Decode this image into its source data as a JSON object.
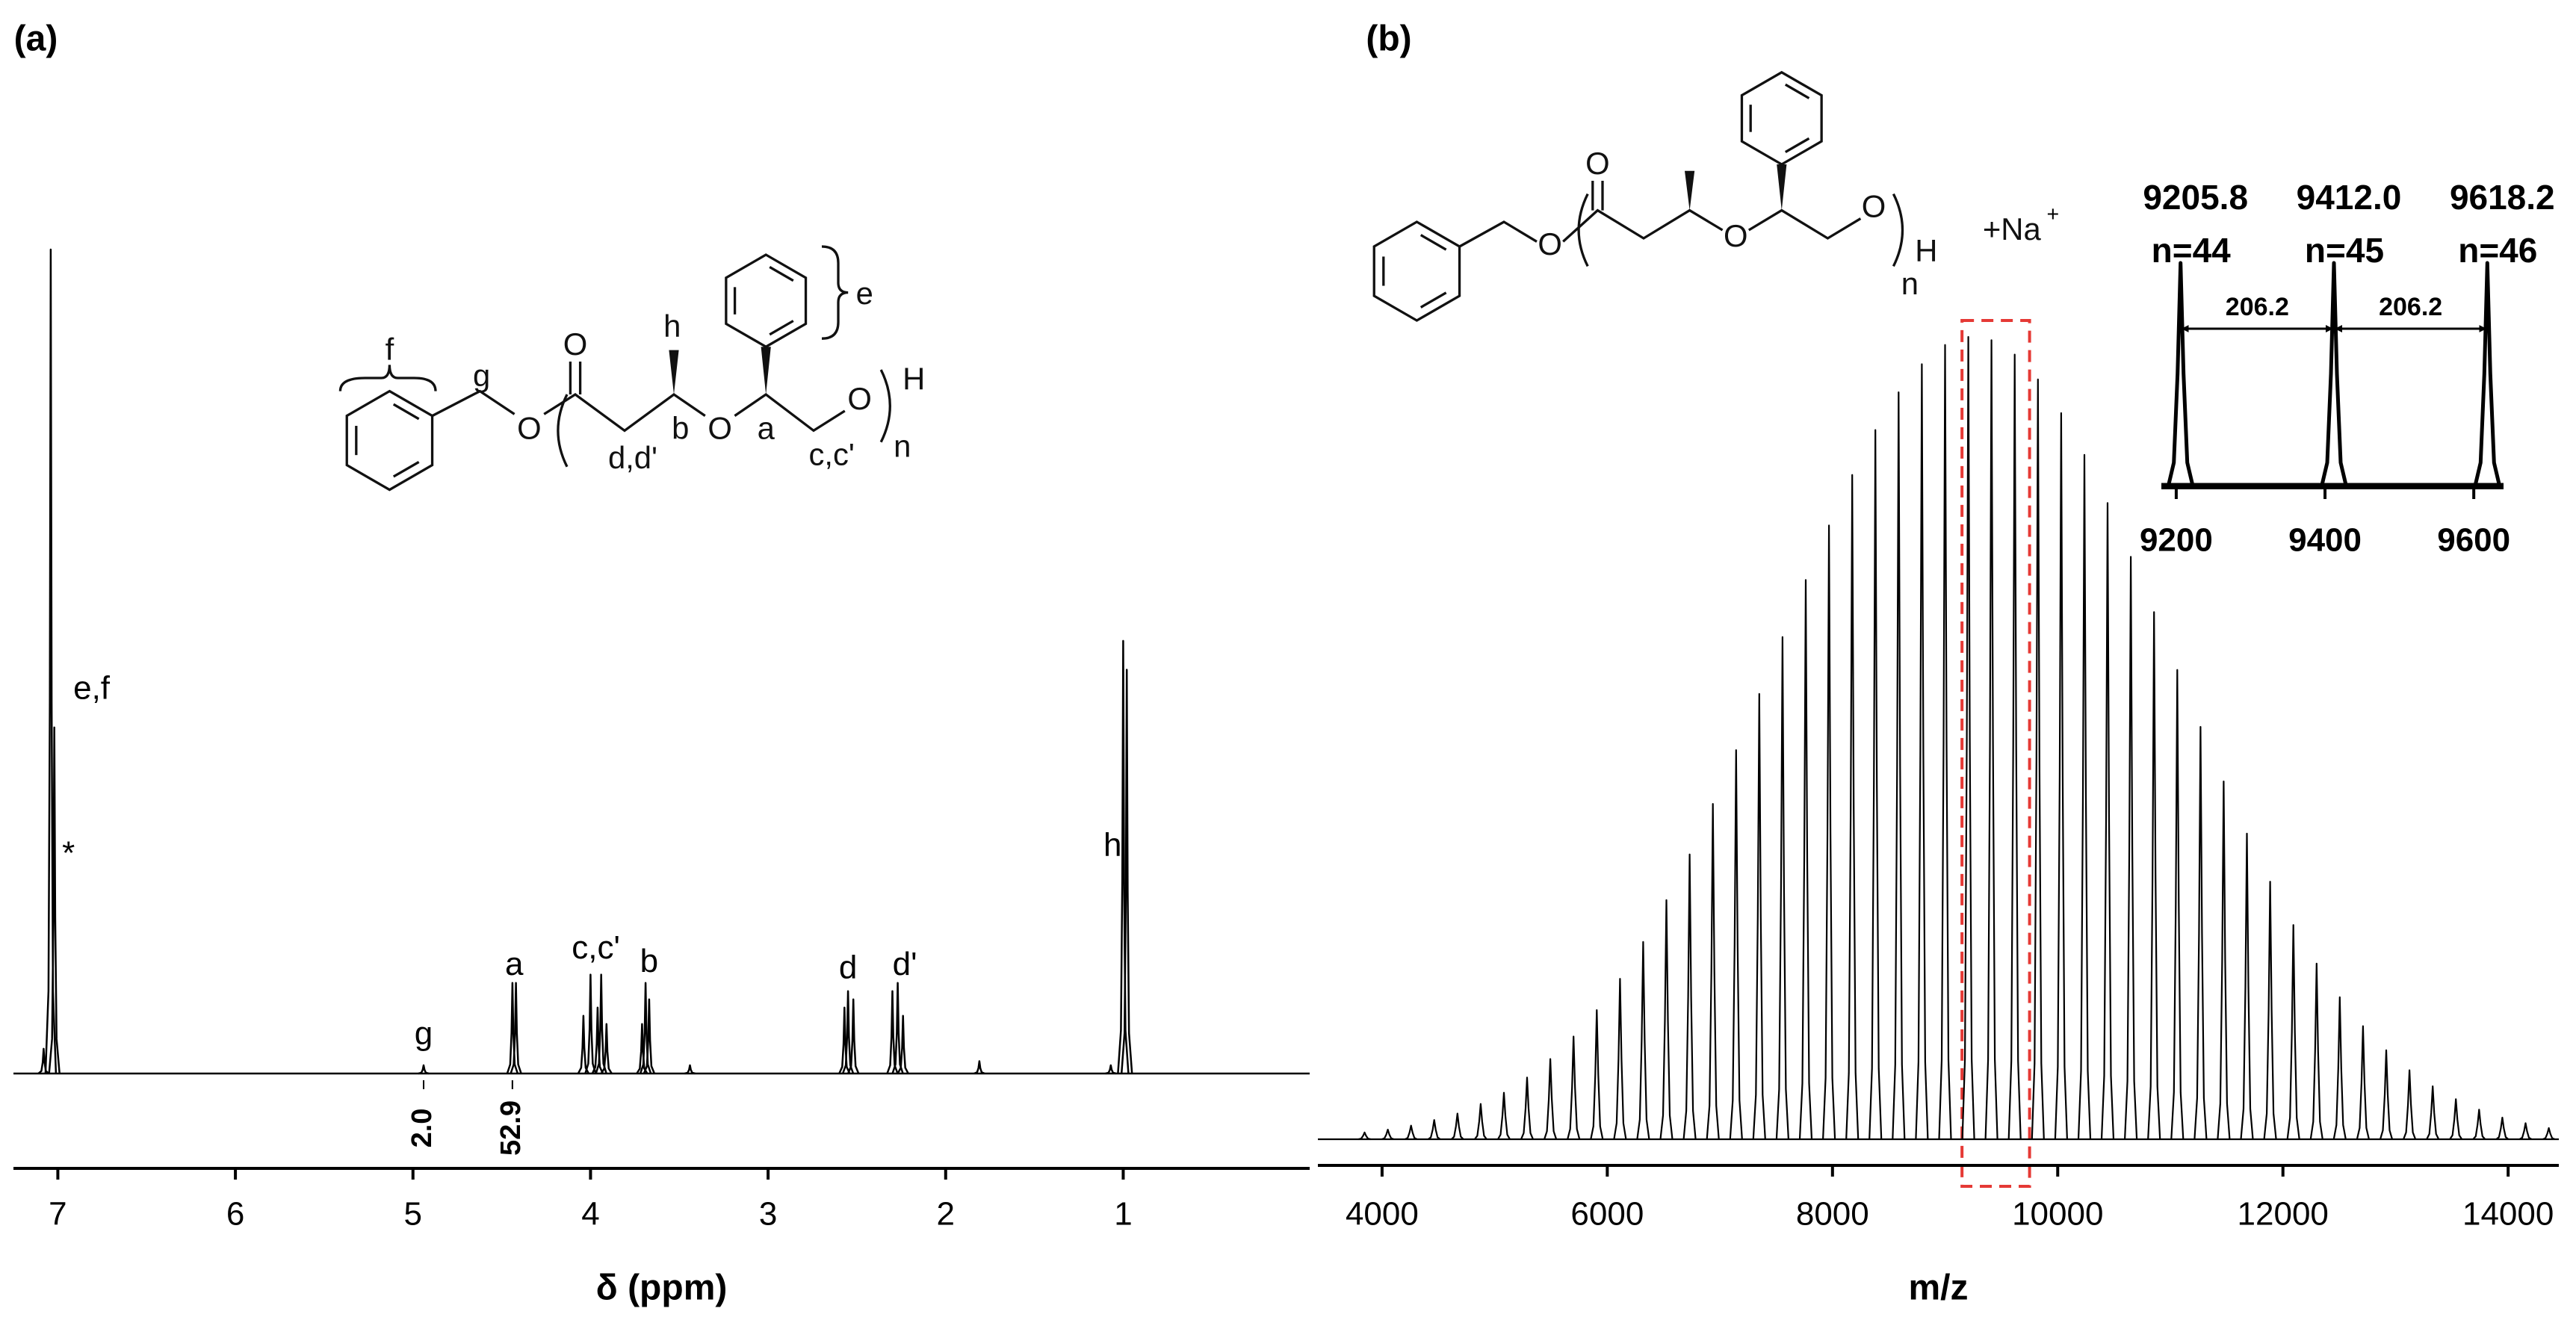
{
  "chart_data": [
    {
      "type": "spectrum",
      "panel": "(a)",
      "xlabel": "δ (ppm)",
      "xlim": [
        7.25,
        -0.05
      ],
      "xticks": [
        7,
        6,
        5,
        4,
        3,
        2,
        1
      ],
      "color": "#000000",
      "x": [
        7.08,
        7.04,
        7.02,
        4.94,
        4.44,
        4.42,
        4.04,
        4.0,
        3.96,
        3.94,
        3.91,
        3.71,
        3.69,
        3.67,
        3.44,
        2.57,
        2.55,
        2.52,
        2.3,
        2.27,
        2.24,
        1.81,
        1.07,
        1.0,
        0.98
      ],
      "values": [
        3,
        100,
        42,
        1,
        11,
        11,
        7,
        12,
        8,
        12,
        6,
        6,
        11,
        9,
        1,
        8,
        10,
        9,
        10,
        11,
        7,
        1.5,
        1,
        52.5,
        49
      ],
      "annotations": [
        {
          "text": "e,f",
          "x": 6.81,
          "y": 46.5
        },
        {
          "text": "*",
          "x": 6.94,
          "y": 26.5
        },
        {
          "text": "g",
          "x": 4.94,
          "y": 4.6
        },
        {
          "text": "a",
          "x": 4.43,
          "y": 13
        },
        {
          "text": "c,c'",
          "x": 3.97,
          "y": 15
        },
        {
          "text": "b",
          "x": 3.67,
          "y": 13.4
        },
        {
          "text": "d",
          "x": 2.55,
          "y": 12.6
        },
        {
          "text": "d'",
          "x": 2.23,
          "y": 13
        },
        {
          "text": "h",
          "x": 1.06,
          "y": 27.5
        }
      ],
      "integrals": [
        {
          "text": "2.0",
          "x": 4.94
        },
        {
          "text": "52.9",
          "x": 4.44
        }
      ],
      "structure_labels": [
        "f",
        "g",
        "O",
        "O",
        "d,d'",
        "b",
        "h",
        "O",
        "a",
        "c,c'",
        "O",
        "H",
        "n",
        "e"
      ]
    },
    {
      "type": "spectrum",
      "panel": "(b)",
      "xlabel": "m/z",
      "xlim": [
        3430,
        14450
      ],
      "xticks": [
        4000,
        6000,
        8000,
        10000,
        12000,
        14000
      ],
      "color": "#000000",
      "x": [
        3844.6,
        4050.8,
        4257.0,
        4463.2,
        4669.4,
        4875.6,
        5081.8,
        5288.0,
        5494.2,
        5700.4,
        5906.6,
        6112.8,
        6319.0,
        6525.2,
        6731.4,
        6937.6,
        7143.8,
        7350.0,
        7556.2,
        7762.4,
        7968.6,
        8174.8,
        8381.0,
        8587.2,
        8793.4,
        8999.6,
        9205.8,
        9412.0,
        9618.2,
        9824.4,
        10030.6,
        10236.8,
        10443.0,
        10649.2,
        10855.4,
        11061.6,
        11267.8,
        11474.0,
        11680.2,
        11886.4,
        12092.6,
        12298.8,
        12505.0,
        12711.2,
        12917.4,
        13123.6,
        13329.8,
        13536.0,
        13742.2,
        13948.4,
        14154.6,
        14360.8
      ],
      "values": [
        0.85,
        1.2,
        1.7,
        2.4,
        3.2,
        4.4,
        5.8,
        7.7,
        10.0,
        12.8,
        16.1,
        20.0,
        24.6,
        29.8,
        35.5,
        41.8,
        48.5,
        55.5,
        62.6,
        69.7,
        76.5,
        82.8,
        88.4,
        93.1,
        96.6,
        99.0,
        100,
        99.6,
        97.8,
        94.7,
        90.5,
        85.3,
        79.3,
        72.6,
        65.7,
        58.5,
        51.4,
        44.6,
        38.1,
        32.1,
        26.7,
        21.9,
        17.7,
        14.1,
        11.1,
        8.6,
        6.6,
        5.0,
        3.7,
        2.7,
        2.0,
        1.4
      ],
      "highlight": [
        9150,
        9750
      ],
      "highlight_color": "#e53935",
      "structure_labels": [
        "O",
        "O",
        "O",
        "O",
        "H",
        "n"
      ],
      "ion": "+Na",
      "ion_charge": "+"
    },
    {
      "type": "spectrum",
      "xlim": [
        9180,
        9640
      ],
      "xticks": [
        9200,
        9400,
        9600
      ],
      "color": "#000000",
      "x": [
        9205.8,
        9412.0,
        9618.2
      ],
      "x_labels": [
        "9205.8",
        "9412.0",
        "9618.2"
      ],
      "labels": [
        "n=44",
        "n=45",
        "n=46"
      ],
      "values": [
        100,
        100,
        100
      ],
      "spacings": [
        206.2,
        206.2
      ]
    }
  ]
}
